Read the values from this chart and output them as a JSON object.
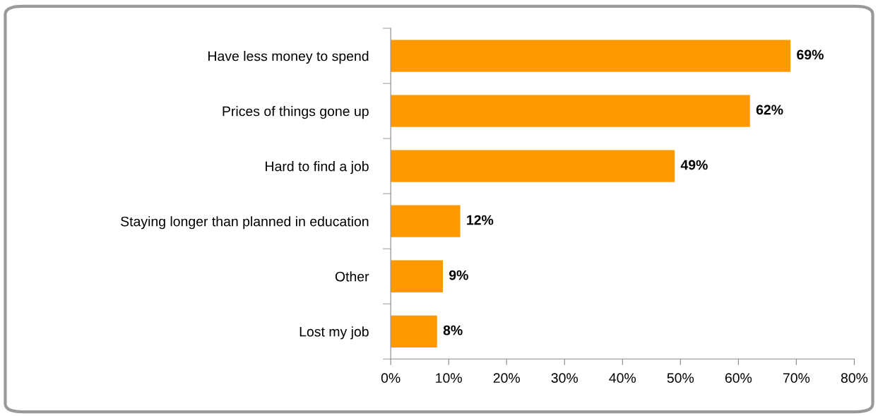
{
  "chart_data": {
    "type": "bar",
    "orientation": "horizontal",
    "categories": [
      "Have less money to spend",
      "Prices of things gone up",
      "Hard to find a job",
      "Staying longer than planned in education",
      "Other",
      "Lost my job"
    ],
    "values": [
      69,
      62,
      49,
      12,
      9,
      8
    ],
    "value_labels": [
      "69%",
      "62%",
      "49%",
      "12%",
      "9%",
      "8%"
    ],
    "color": "#ff9900",
    "xlim": [
      0,
      80
    ],
    "xticks": [
      {
        "value": 0,
        "label": "0%"
      },
      {
        "value": 10,
        "label": "10%"
      },
      {
        "value": 20,
        "label": "20%"
      },
      {
        "value": 30,
        "label": "30%"
      },
      {
        "value": 40,
        "label": "40%"
      },
      {
        "value": 50,
        "label": "50%"
      },
      {
        "value": 60,
        "label": "60%"
      },
      {
        "value": 70,
        "label": "70%"
      },
      {
        "value": 80,
        "label": "80%"
      }
    ],
    "grid": false,
    "legend": false
  }
}
